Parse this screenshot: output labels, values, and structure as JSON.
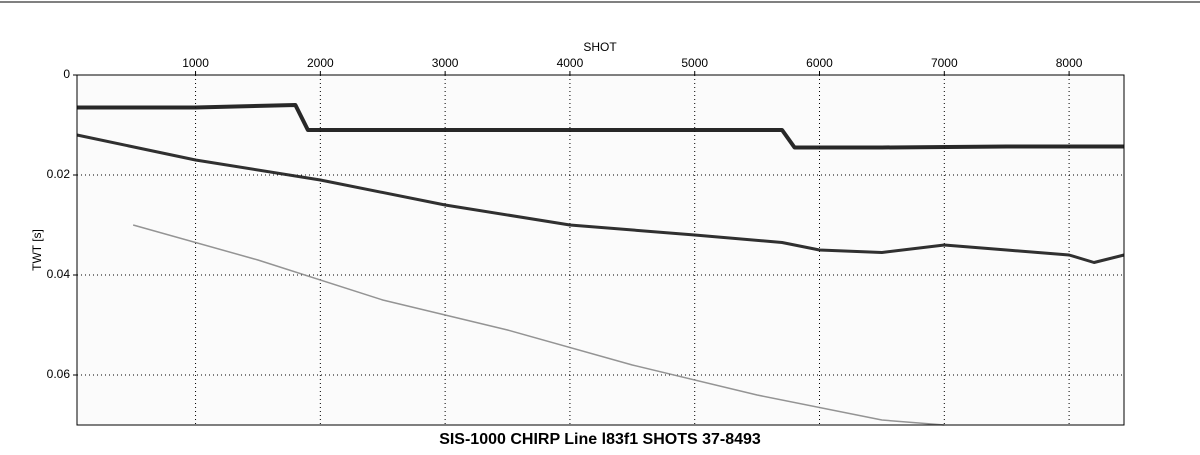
{
  "chart_data": {
    "type": "seismic",
    "title": "SIS-1000 CHIRP Line l83f1 SHOTS 37-8493",
    "x_label": "SHOT",
    "y_label": "TWT [s]",
    "xlim": [
      50,
      8440
    ],
    "xticks": [
      1000,
      2000,
      3000,
      4000,
      5000,
      6000,
      7000,
      8000
    ],
    "ylim": [
      0,
      0.07
    ],
    "yticks": [
      0,
      0.02,
      0.04,
      0.06
    ],
    "y_inverted": true,
    "grid": true,
    "series": [
      {
        "color": "#111111",
        "x": [
          50,
          1000,
          1800,
          1900,
          3000,
          4000,
          5000,
          5700,
          5800,
          6500,
          7500,
          8440
        ],
        "values": [
          0.0065,
          0.0065,
          0.006,
          0.011,
          0.011,
          0.011,
          0.011,
          0.011,
          0.0145,
          0.0145,
          0.0143,
          0.0143
        ]
      },
      {
        "color": "#1a1a1a",
        "x": [
          50,
          1000,
          2000,
          3000,
          4000,
          5000,
          5700,
          6000,
          6500,
          7000,
          7500,
          8000,
          8200,
          8440
        ],
        "values": [
          0.012,
          0.017,
          0.021,
          0.026,
          0.03,
          0.032,
          0.0335,
          0.035,
          0.0355,
          0.034,
          0.035,
          0.036,
          0.0375,
          0.036
        ]
      },
      {
        "color": "#888888",
        "x": [
          500,
          1500,
          2500,
          3500,
          4500,
          5500,
          6500,
          7000
        ],
        "values": [
          0.03,
          0.037,
          0.045,
          0.051,
          0.058,
          0.064,
          0.069,
          0.07
        ]
      }
    ]
  }
}
